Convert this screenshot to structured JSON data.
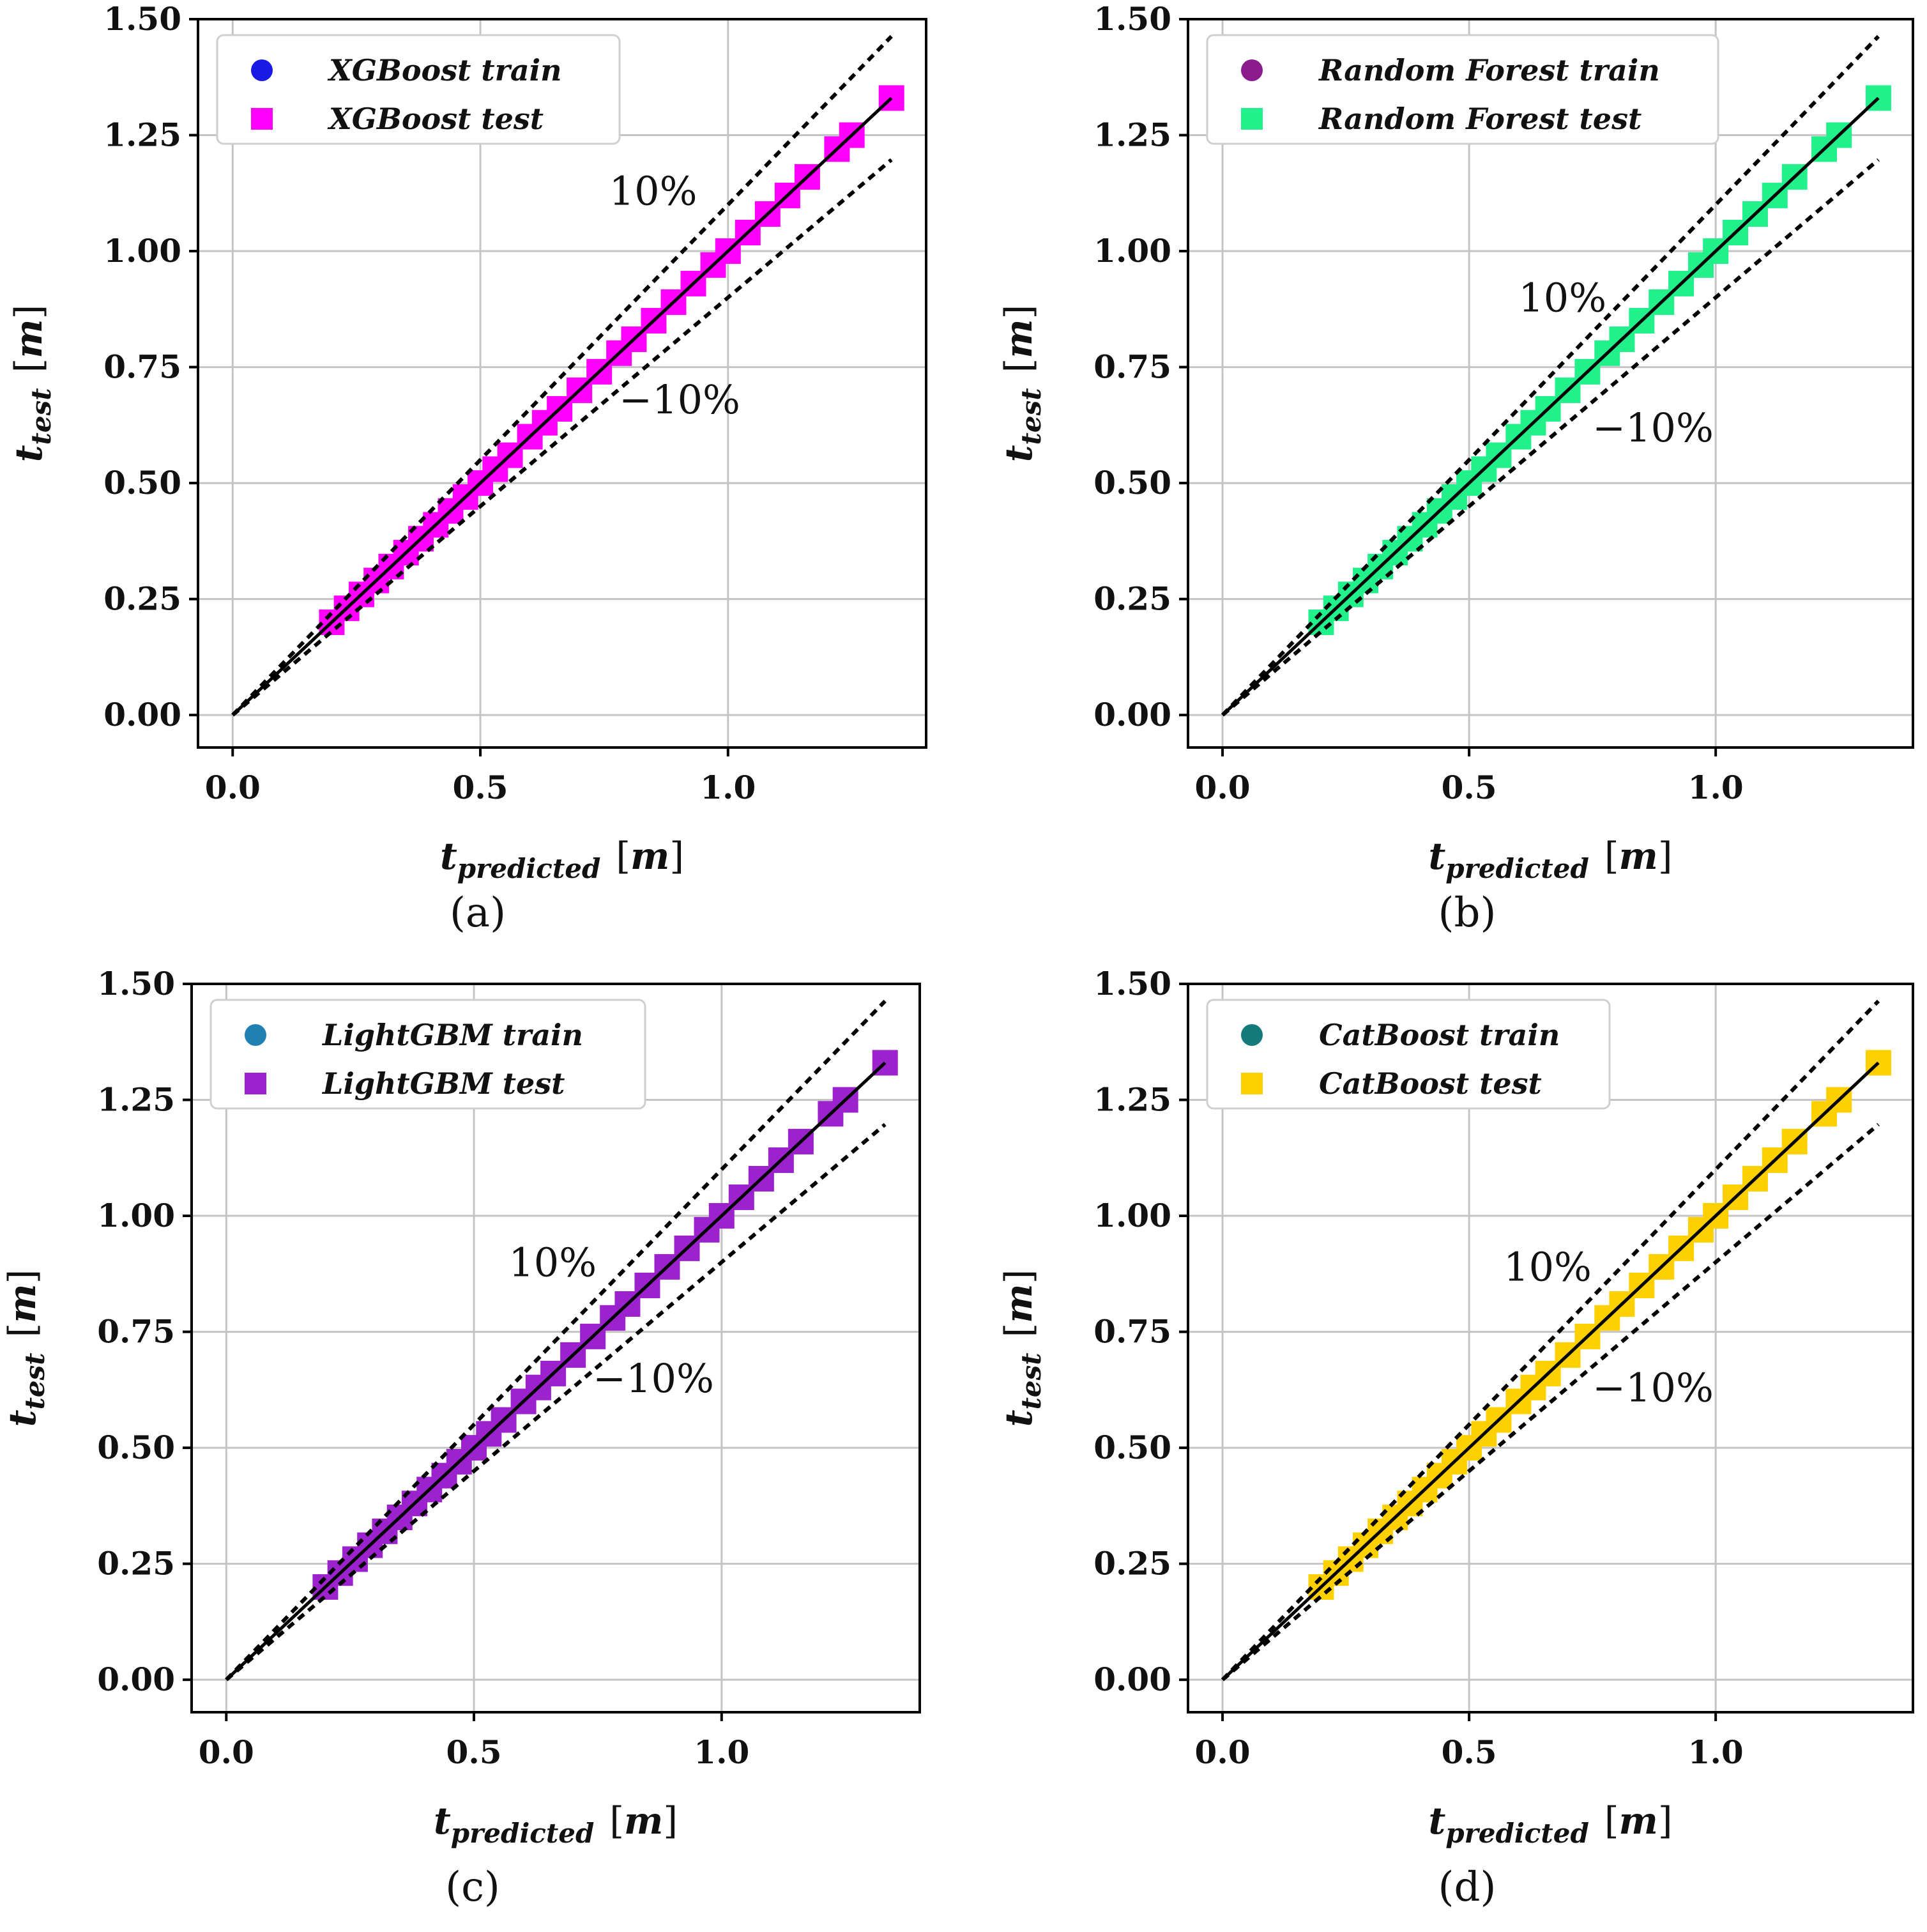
{
  "chart_data": [
    {
      "panel": "a",
      "caption": "(a)",
      "type": "scatter",
      "xlabel": {
        "main": "t",
        "sub": "predicted",
        "unit": "m"
      },
      "ylabel": {
        "main": "t",
        "sub": "test",
        "unit": "m"
      },
      "xlim": [
        -0.07,
        1.4
      ],
      "ylim": [
        -0.07,
        1.5
      ],
      "xticks": [
        0.0,
        0.5,
        1.0
      ],
      "xtick_labels": [
        "0.0",
        "0.5",
        "1.0"
      ],
      "yticks": [
        0.0,
        0.25,
        0.5,
        0.75,
        1.0,
        1.25,
        1.5
      ],
      "ytick_labels": [
        "0.00",
        "0.25",
        "0.50",
        "0.75",
        "1.00",
        "1.25",
        "1.50"
      ],
      "grid": true,
      "legend": {
        "placement": "top-left",
        "entries": [
          {
            "label": "XGBoost train",
            "marker": "circle",
            "color": "#1a1ae6"
          },
          {
            "label": "XGBoost test",
            "marker": "square",
            "color": "#ff00ff"
          }
        ]
      },
      "series": [
        {
          "name": "XGBoost test",
          "marker": "square",
          "color": "#ff00ff",
          "x": [
            0.2,
            0.23,
            0.26,
            0.29,
            0.32,
            0.35,
            0.38,
            0.41,
            0.44,
            0.47,
            0.5,
            0.53,
            0.56,
            0.6,
            0.63,
            0.66,
            0.7,
            0.74,
            0.78,
            0.81,
            0.85,
            0.89,
            0.93,
            0.97,
            1.0,
            1.04,
            1.08,
            1.12,
            1.16,
            1.22,
            1.25,
            1.33
          ],
          "y": [
            0.2,
            0.23,
            0.26,
            0.29,
            0.32,
            0.35,
            0.38,
            0.41,
            0.44,
            0.47,
            0.5,
            0.53,
            0.56,
            0.6,
            0.63,
            0.66,
            0.7,
            0.74,
            0.78,
            0.81,
            0.85,
            0.89,
            0.93,
            0.97,
            1.0,
            1.04,
            1.08,
            1.12,
            1.16,
            1.22,
            1.25,
            1.33
          ]
        }
      ],
      "lines": [
        {
          "name": "y=x",
          "style": "solid",
          "slope": 1.0,
          "x_range": [
            0,
            1.33
          ]
        },
        {
          "name": "+10%",
          "style": "dashed",
          "slope": 1.1,
          "x_range": [
            0,
            1.33
          ]
        },
        {
          "name": "-10%",
          "style": "dashed",
          "slope": 0.9,
          "x_range": [
            0,
            1.33
          ]
        }
      ],
      "annotations": [
        {
          "text": "10%",
          "x": 0.76,
          "y": 1.1
        },
        {
          "text": "−10%",
          "x": 0.78,
          "y": 0.65
        }
      ]
    },
    {
      "panel": "b",
      "caption": "(b)",
      "type": "scatter",
      "xlabel": {
        "main": "t",
        "sub": "predicted",
        "unit": "m"
      },
      "ylabel": {
        "main": "t",
        "sub": "test",
        "unit": "m"
      },
      "xlim": [
        -0.07,
        1.4
      ],
      "ylim": [
        -0.07,
        1.5
      ],
      "xticks": [
        0.0,
        0.5,
        1.0
      ],
      "xtick_labels": [
        "0.0",
        "0.5",
        "1.0"
      ],
      "yticks": [
        0.0,
        0.25,
        0.5,
        0.75,
        1.0,
        1.25,
        1.5
      ],
      "ytick_labels": [
        "0.00",
        "0.25",
        "0.50",
        "0.75",
        "1.00",
        "1.25",
        "1.50"
      ],
      "grid": true,
      "legend": {
        "placement": "top-left",
        "entries": [
          {
            "label": "Random Forest train",
            "marker": "circle",
            "color": "#8b1a8b"
          },
          {
            "label": "Random Forest test",
            "marker": "square",
            "color": "#22f08a"
          }
        ]
      },
      "series": [
        {
          "name": "Random Forest test",
          "marker": "square",
          "color": "#22f08a",
          "x": [
            0.2,
            0.23,
            0.26,
            0.29,
            0.32,
            0.35,
            0.38,
            0.41,
            0.44,
            0.47,
            0.5,
            0.53,
            0.56,
            0.6,
            0.63,
            0.66,
            0.7,
            0.74,
            0.78,
            0.81,
            0.85,
            0.89,
            0.93,
            0.97,
            1.0,
            1.04,
            1.08,
            1.12,
            1.16,
            1.22,
            1.25,
            1.33
          ],
          "y": [
            0.2,
            0.23,
            0.26,
            0.29,
            0.32,
            0.35,
            0.38,
            0.41,
            0.44,
            0.47,
            0.5,
            0.53,
            0.56,
            0.6,
            0.63,
            0.66,
            0.7,
            0.74,
            0.78,
            0.81,
            0.85,
            0.89,
            0.93,
            0.97,
            1.0,
            1.04,
            1.08,
            1.12,
            1.16,
            1.22,
            1.25,
            1.33
          ]
        }
      ],
      "lines": [
        {
          "name": "y=x",
          "style": "solid",
          "slope": 1.0,
          "x_range": [
            0,
            1.33
          ]
        },
        {
          "name": "+10%",
          "style": "dashed",
          "slope": 1.1,
          "x_range": [
            0,
            1.33
          ]
        },
        {
          "name": "-10%",
          "style": "dashed",
          "slope": 0.9,
          "x_range": [
            0,
            1.33
          ]
        }
      ],
      "annotations": [
        {
          "text": "10%",
          "x": 0.6,
          "y": 0.87
        },
        {
          "text": "−10%",
          "x": 0.75,
          "y": 0.59
        }
      ]
    },
    {
      "panel": "c",
      "caption": "(c)",
      "type": "scatter",
      "xlabel": {
        "main": "t",
        "sub": "predicted",
        "unit": "m"
      },
      "ylabel": {
        "main": "t",
        "sub": "test",
        "unit": "m"
      },
      "xlim": [
        -0.07,
        1.4
      ],
      "ylim": [
        -0.07,
        1.5
      ],
      "xticks": [
        0.0,
        0.5,
        1.0
      ],
      "xtick_labels": [
        "0.0",
        "0.5",
        "1.0"
      ],
      "yticks": [
        0.0,
        0.25,
        0.5,
        0.75,
        1.0,
        1.25,
        1.5
      ],
      "ytick_labels": [
        "0.00",
        "0.25",
        "0.50",
        "0.75",
        "1.00",
        "1.25",
        "1.50"
      ],
      "grid": true,
      "legend": {
        "placement": "top-left",
        "entries": [
          {
            "label": "LightGBM train",
            "marker": "circle",
            "color": "#1f80b4"
          },
          {
            "label": "LightGBM test",
            "marker": "square",
            "color": "#9b22cc"
          }
        ]
      },
      "series": [
        {
          "name": "LightGBM test",
          "marker": "square",
          "color": "#9b22cc",
          "x": [
            0.2,
            0.23,
            0.26,
            0.29,
            0.32,
            0.35,
            0.38,
            0.41,
            0.44,
            0.47,
            0.5,
            0.53,
            0.56,
            0.6,
            0.63,
            0.66,
            0.7,
            0.74,
            0.78,
            0.81,
            0.85,
            0.89,
            0.93,
            0.97,
            1.0,
            1.04,
            1.08,
            1.12,
            1.16,
            1.22,
            1.25,
            1.33
          ],
          "y": [
            0.2,
            0.23,
            0.26,
            0.29,
            0.32,
            0.35,
            0.38,
            0.41,
            0.44,
            0.47,
            0.5,
            0.53,
            0.56,
            0.6,
            0.63,
            0.66,
            0.7,
            0.74,
            0.78,
            0.81,
            0.85,
            0.89,
            0.93,
            0.97,
            1.0,
            1.04,
            1.08,
            1.12,
            1.16,
            1.22,
            1.25,
            1.33
          ]
        }
      ],
      "lines": [
        {
          "name": "y=x",
          "style": "solid",
          "slope": 1.0,
          "x_range": [
            0,
            1.33
          ]
        },
        {
          "name": "+10%",
          "style": "dashed",
          "slope": 1.1,
          "x_range": [
            0,
            1.33
          ]
        },
        {
          "name": "-10%",
          "style": "dashed",
          "slope": 0.9,
          "x_range": [
            0,
            1.33
          ]
        }
      ],
      "annotations": [
        {
          "text": "10%",
          "x": 0.57,
          "y": 0.87
        },
        {
          "text": "−10%",
          "x": 0.74,
          "y": 0.62
        }
      ]
    },
    {
      "panel": "d",
      "caption": "(d)",
      "type": "scatter",
      "xlabel": {
        "main": "t",
        "sub": "predicted",
        "unit": "m"
      },
      "ylabel": {
        "main": "t",
        "sub": "test",
        "unit": "m"
      },
      "xlim": [
        -0.07,
        1.4
      ],
      "ylim": [
        -0.07,
        1.5
      ],
      "xticks": [
        0.0,
        0.5,
        1.0
      ],
      "xtick_labels": [
        "0.0",
        "0.5",
        "1.0"
      ],
      "yticks": [
        0.0,
        0.25,
        0.5,
        0.75,
        1.0,
        1.25,
        1.5
      ],
      "ytick_labels": [
        "0.00",
        "0.25",
        "0.50",
        "0.75",
        "1.00",
        "1.25",
        "1.50"
      ],
      "grid": true,
      "legend": {
        "placement": "top-left",
        "entries": [
          {
            "label": "CatBoost train",
            "marker": "circle",
            "color": "#157a7a"
          },
          {
            "label": "CatBoost test",
            "marker": "square",
            "color": "#ffd000"
          }
        ]
      },
      "series": [
        {
          "name": "CatBoost test",
          "marker": "square",
          "color": "#ffd000",
          "x": [
            0.2,
            0.23,
            0.26,
            0.29,
            0.32,
            0.35,
            0.38,
            0.41,
            0.44,
            0.47,
            0.5,
            0.53,
            0.56,
            0.6,
            0.63,
            0.66,
            0.7,
            0.74,
            0.78,
            0.81,
            0.85,
            0.89,
            0.93,
            0.97,
            1.0,
            1.04,
            1.08,
            1.12,
            1.16,
            1.22,
            1.25,
            1.33
          ],
          "y": [
            0.2,
            0.23,
            0.26,
            0.29,
            0.32,
            0.35,
            0.38,
            0.41,
            0.44,
            0.47,
            0.5,
            0.53,
            0.56,
            0.6,
            0.63,
            0.66,
            0.7,
            0.74,
            0.78,
            0.81,
            0.85,
            0.89,
            0.93,
            0.97,
            1.0,
            1.04,
            1.08,
            1.12,
            1.16,
            1.22,
            1.25,
            1.33
          ]
        }
      ],
      "lines": [
        {
          "name": "y=x",
          "style": "solid",
          "slope": 1.0,
          "x_range": [
            0,
            1.33
          ]
        },
        {
          "name": "+10%",
          "style": "dashed",
          "slope": 1.1,
          "x_range": [
            0,
            1.33
          ]
        },
        {
          "name": "-10%",
          "style": "dashed",
          "slope": 0.9,
          "x_range": [
            0,
            1.33
          ]
        }
      ],
      "annotations": [
        {
          "text": "10%",
          "x": 0.57,
          "y": 0.86
        },
        {
          "text": "−10%",
          "x": 0.75,
          "y": 0.6
        }
      ]
    }
  ]
}
